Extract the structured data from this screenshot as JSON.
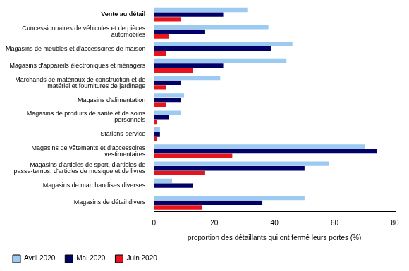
{
  "chart_data": {
    "type": "bar",
    "orientation": "horizontal",
    "categories": [
      "Vente au détail",
      "Concessionnaires de véhicules et de pièces automobiles",
      "Magasins de meubles et d'accessoires de maison",
      "Magasins d'appareils électroniques et ménagers",
      "Marchands de matériaux de construction et de matériel et fournitures de jardinage",
      "Magasins d'alimentation",
      "Magasins de produits de santé et de soins personnels",
      "Stations-service",
      "Magasins de vêtements et d'accessoires vestimentaires",
      "Magasins d'articles de sport, d'articles de passe-temps, d'articles de musique et de livres",
      "Magasins de marchandises diverses",
      "Magasins de détail divers"
    ],
    "series": [
      {
        "name": "Avril 2020",
        "color": "#9ccaf0",
        "values": [
          31,
          38,
          46,
          44,
          22,
          10,
          9,
          2,
          70,
          58,
          6,
          50
        ]
      },
      {
        "name": "Mai 2020",
        "color": "#000066",
        "values": [
          23,
          17,
          39,
          23,
          9,
          9,
          5,
          2,
          74,
          50,
          13,
          36
        ]
      },
      {
        "name": "Juin 2020",
        "color": "#e8141c",
        "values": [
          9,
          5,
          4,
          13,
          4,
          4,
          1,
          1,
          26,
          17,
          0,
          16
        ]
      }
    ],
    "x_label": "proportion des détaillants qui ont fermé leurs portes (%)",
    "xlim": [
      0,
      80
    ],
    "xticks": [
      0,
      20,
      40,
      60,
      80
    ],
    "grid": false,
    "legend": "bottom"
  }
}
